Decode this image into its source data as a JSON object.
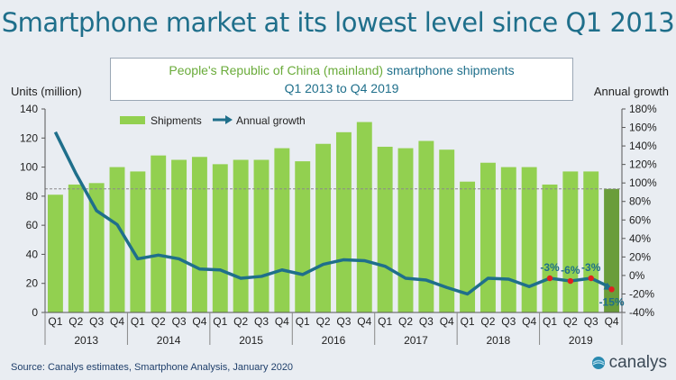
{
  "header": {
    "title": "Smartphone market at its lowest level since Q1 2013",
    "subtitle_highlight": "People's Republic of China (mainland)",
    "subtitle_rest": " smartphone shipments",
    "subtitle_line2": "Q1 2013 to Q4 2019"
  },
  "footer": {
    "source": "Source: Canalys estimates, Smartphone Analysis, January 2020",
    "logo_text": "canalys"
  },
  "chart_data": {
    "type": "bar",
    "title": "Smartphone market at its lowest level since Q1 2013",
    "ylabel": "Units (million)",
    "y2label": "Annual growth",
    "ylim": [
      0,
      140
    ],
    "y2lim": [
      -40,
      180
    ],
    "y_ticks": [
      0,
      20,
      40,
      60,
      80,
      100,
      120,
      140
    ],
    "y2_ticks": [
      "-40%",
      "-20%",
      "0%",
      "20%",
      "40%",
      "60%",
      "80%",
      "100%",
      "120%",
      "140%",
      "160%",
      "180%"
    ],
    "quarter_labels": [
      "Q1",
      "Q2",
      "Q3",
      "Q4",
      "Q1",
      "Q2",
      "Q3",
      "Q4",
      "Q1",
      "Q2",
      "Q3",
      "Q4",
      "Q1",
      "Q2",
      "Q3",
      "Q4",
      "Q1",
      "Q2",
      "Q3",
      "Q4",
      "Q1",
      "Q2",
      "Q3",
      "Q4",
      "Q1",
      "Q2",
      "Q3",
      "Q4"
    ],
    "years": [
      {
        "label": "2013",
        "start": 0,
        "end": 3
      },
      {
        "label": "2014",
        "start": 4,
        "end": 7
      },
      {
        "label": "2015",
        "start": 8,
        "end": 11
      },
      {
        "label": "2016",
        "start": 12,
        "end": 15
      },
      {
        "label": "2017",
        "start": 16,
        "end": 19
      },
      {
        "label": "2018",
        "start": 20,
        "end": 23
      },
      {
        "label": "2019",
        "start": 24,
        "end": 27
      }
    ],
    "reference_line": 85,
    "series": [
      {
        "name": "Shipments",
        "type": "bar",
        "axis": "left",
        "values": [
          81,
          88,
          89,
          100,
          97,
          108,
          105,
          107,
          102,
          105,
          105,
          113,
          104,
          116,
          124,
          131,
          114,
          113,
          118,
          112,
          90,
          103,
          100,
          100,
          88,
          97,
          97,
          85
        ],
        "color": "#92d050",
        "highlight_last_color": "#6a9d3a"
      },
      {
        "name": "Annual growth",
        "type": "line",
        "axis": "right",
        "values": [
          155,
          110,
          70,
          55,
          18,
          22,
          18,
          7,
          6,
          -3,
          -1,
          6,
          1,
          12,
          17,
          16,
          10,
          -3,
          -5,
          -13,
          -20,
          -3,
          -4,
          -12,
          -3,
          -6,
          -3,
          -15
        ],
        "color": "#1f6f8b"
      }
    ],
    "annotations": [
      {
        "index": 24,
        "text": "-3%"
      },
      {
        "index": 25,
        "text": "-6%"
      },
      {
        "index": 26,
        "text": "-3%"
      },
      {
        "index": 27,
        "text": "-15%"
      }
    ],
    "legend": [
      "Shipments",
      "Annual growth"
    ],
    "legend_position": "top-left",
    "grid": false
  }
}
